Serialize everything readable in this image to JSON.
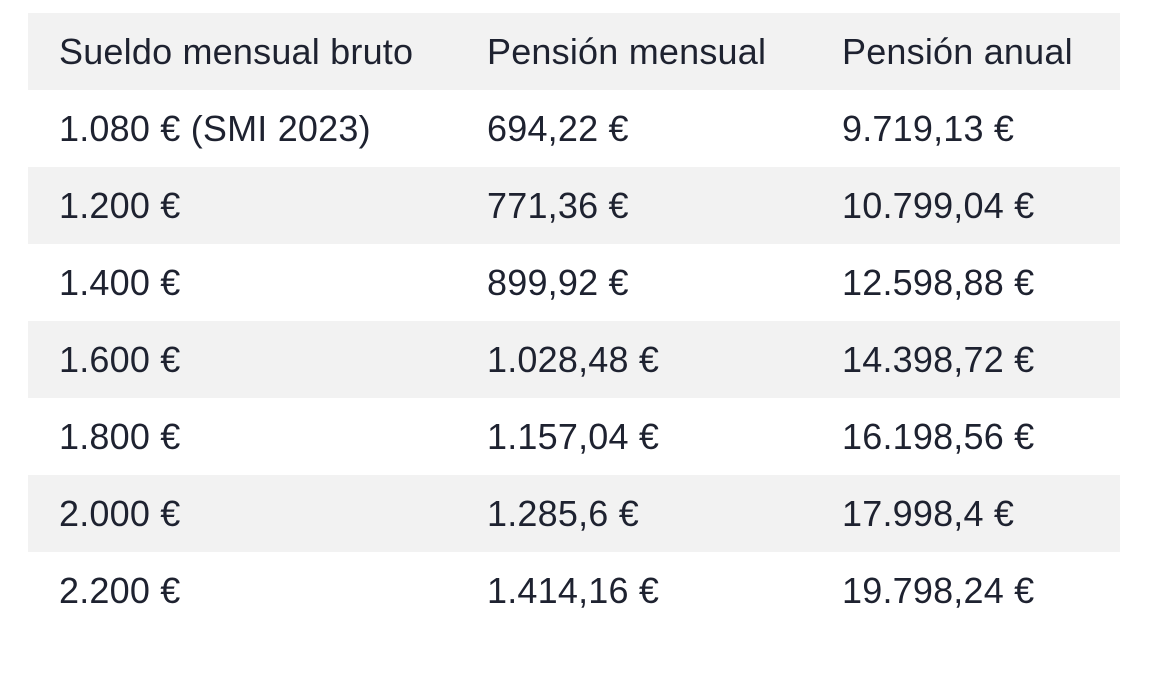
{
  "table": {
    "headers": [
      "Sueldo mensual bruto",
      "Pensión mensual",
      "Pensión anual"
    ],
    "rows": [
      [
        "1.080 € (SMI 2023)",
        "694,22 €",
        "9.719,13 €"
      ],
      [
        "1.200 €",
        "771,36 €",
        "10.799,04 €"
      ],
      [
        "1.400 €",
        "899,92 €",
        "12.598,88 €"
      ],
      [
        "1.600 €",
        "1.028,48 €",
        "14.398,72 €"
      ],
      [
        "1.800 €",
        "1.157,04 €",
        "16.198,56 €"
      ],
      [
        "2.000 €",
        "1.285,6 €",
        "17.998,4 €"
      ],
      [
        "2.200 €",
        "1.414,16 €",
        "19.798,24 €"
      ]
    ]
  },
  "colors": {
    "text": "#1e2230",
    "stripe": "#f2f2f2",
    "background": "#ffffff"
  }
}
